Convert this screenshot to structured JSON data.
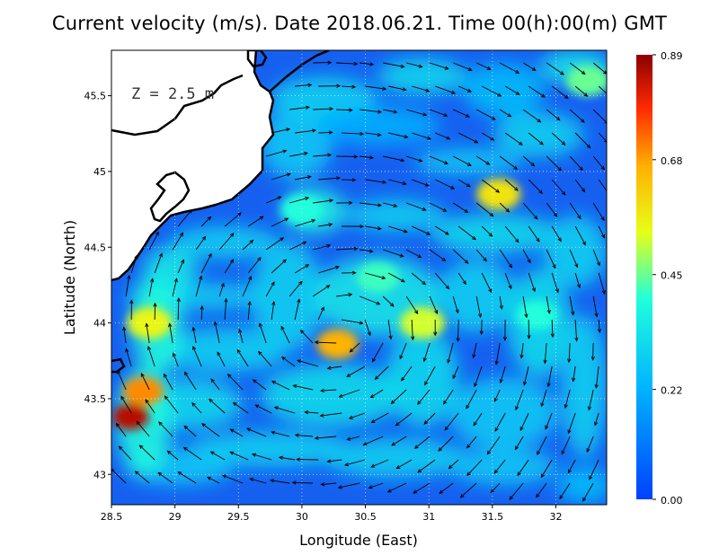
{
  "title": "Current velocity (m/s). Date 2018.06.21. Time 00(h):00(m) GMT",
  "depth_label": "Z  =  2.5  m",
  "xlabel": "Longitude (East)",
  "ylabel": "Latitude (North)",
  "x_ticks": [
    "28.5",
    "29",
    "29.5",
    "30",
    "30.5",
    "31",
    "31.5",
    "32"
  ],
  "y_ticks": [
    "43",
    "43.5",
    "44",
    "44.5",
    "45",
    "45.5"
  ],
  "colorbar_ticks": [
    "0.89",
    "0.68",
    "0.45",
    "0.22",
    "0.00"
  ],
  "chart_data": {
    "type": "heatmap",
    "title": "Current velocity (m/s). Date 2018.06.21. Time 00(h):00(m) GMT",
    "xlabel": "Longitude (East)",
    "ylabel": "Latitude (North)",
    "xlim": [
      28.5,
      32.4
    ],
    "ylim": [
      42.8,
      45.8
    ],
    "x_ticks": [
      28.5,
      29,
      29.5,
      30,
      30.5,
      31,
      31.5,
      32
    ],
    "y_ticks": [
      43,
      43.5,
      44,
      44.5,
      45,
      45.5
    ],
    "colorbar": {
      "min": 0.0,
      "max": 0.89,
      "ticks": [
        0.89,
        0.68,
        0.45,
        0.22,
        0.0
      ],
      "colormap": "jet"
    },
    "grid": true,
    "vectors": "current arrows overlaid on speed field",
    "hotspots": [
      {
        "lon": 28.65,
        "lat": 43.38,
        "speed": 0.85
      },
      {
        "lon": 28.75,
        "lat": 43.55,
        "speed": 0.7
      },
      {
        "lon": 28.8,
        "lat": 44.0,
        "speed": 0.55
      },
      {
        "lon": 30.28,
        "lat": 43.86,
        "speed": 0.66
      },
      {
        "lon": 30.95,
        "lat": 44.0,
        "speed": 0.52
      },
      {
        "lon": 31.55,
        "lat": 44.85,
        "speed": 0.58
      },
      {
        "lon": 32.25,
        "lat": 45.6,
        "speed": 0.45
      },
      {
        "lon": 30.0,
        "lat": 44.75,
        "speed": 0.4
      },
      {
        "lon": 30.6,
        "lat": 44.3,
        "speed": 0.42
      },
      {
        "lon": 31.85,
        "lat": 44.05,
        "speed": 0.4
      }
    ]
  }
}
